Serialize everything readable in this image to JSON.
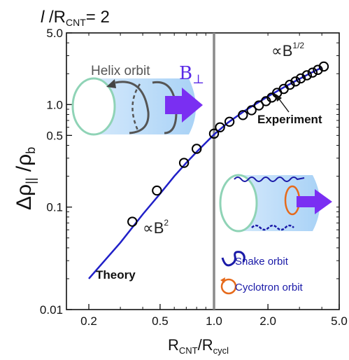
{
  "header": {
    "l": "l",
    "slash": " /R",
    "sub": "CNT",
    "eq": "= 2"
  },
  "chart_data": {
    "type": "scatter",
    "x_scale": "log",
    "y_scale": "log",
    "xlim": [
      0.15,
      5.0
    ],
    "ylim": [
      0.01,
      5.0
    ],
    "x_ticks": [
      {
        "v": 0.2,
        "label": "0.2"
      },
      {
        "v": 0.5,
        "label": "0.5"
      },
      {
        "v": 1.0,
        "label": "1.0"
      },
      {
        "v": 2.0,
        "label": "2.0"
      },
      {
        "v": 5.0,
        "label": "5.0"
      }
    ],
    "y_ticks": [
      {
        "v": 0.01,
        "label": "0.01"
      },
      {
        "v": 0.1,
        "label": "0.1"
      },
      {
        "v": 0.5,
        "label": "0.5"
      },
      {
        "v": 1.0,
        "label": "1.0"
      },
      {
        "v": 5.0,
        "label": "5.0"
      }
    ],
    "vertical_line_x": 1.0,
    "series": [
      {
        "name": "Experiment",
        "kind": "points",
        "color": "#000000",
        "x": [
          0.35,
          0.48,
          0.68,
          0.8,
          1.0,
          1.08,
          1.22,
          1.45,
          1.62,
          1.78,
          1.95,
          2.1,
          2.25,
          2.45,
          2.65,
          2.85,
          3.05,
          3.3,
          3.55,
          3.8,
          4.1
        ],
        "y": [
          0.072,
          0.145,
          0.27,
          0.37,
          0.52,
          0.6,
          0.68,
          0.79,
          0.88,
          0.98,
          1.08,
          1.17,
          1.3,
          1.42,
          1.56,
          1.68,
          1.8,
          1.93,
          2.05,
          2.18,
          2.35
        ]
      },
      {
        "name": "Theory",
        "kind": "line",
        "color": "#2020c8",
        "x": [
          0.2,
          0.3,
          0.4,
          0.5,
          0.6,
          0.7,
          0.8,
          0.9,
          1.0,
          1.2,
          1.5,
          2.0,
          2.5,
          3.0,
          3.5,
          4.0
        ],
        "y": [
          0.02,
          0.045,
          0.085,
          0.135,
          0.2,
          0.27,
          0.345,
          0.425,
          0.51,
          0.67,
          0.88,
          1.2,
          1.5,
          1.78,
          2.05,
          2.3
        ]
      }
    ],
    "annotations": {
      "b_half": "∝B",
      "b_half_exp": "1/2",
      "b_sq": "∝B",
      "b_sq_exp": "2",
      "experiment": "Experiment",
      "theory": "Theory",
      "helix": "Helix orbit",
      "b_perp": "B",
      "b_perp_sub": "⊥",
      "snake": "Snake orbit",
      "cyclotron": "Cyclotron orbit"
    },
    "ylabel": {
      "delta": "Δρ",
      "par": "||",
      "slash": " /ρ",
      "b": "b"
    },
    "xlabel": {
      "r1": "R",
      "s1": "CNT",
      "mid": "/R",
      "s2": "cycl"
    }
  }
}
